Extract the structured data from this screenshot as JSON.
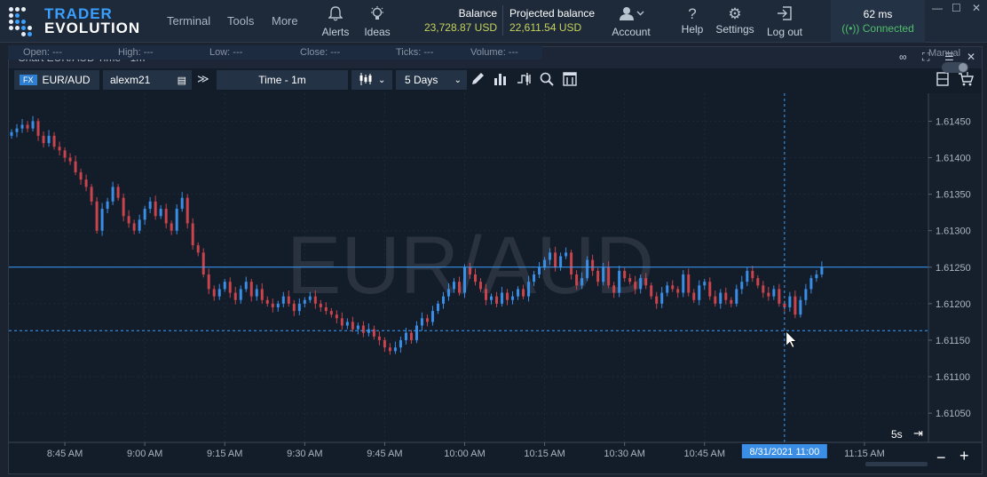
{
  "app": {
    "logo_line1": "TRADER",
    "logo_line2": "EVOLUTION"
  },
  "nav": {
    "terminal": "Terminal",
    "tools": "Tools",
    "more": "More",
    "alerts": "Alerts",
    "ideas": "Ideas",
    "account": "Account",
    "help": "Help",
    "settings": "Settings",
    "logout": "Log out"
  },
  "balance": {
    "balance_label": "Balance",
    "balance_value": "23,728.87 USD",
    "projected_label": "Projected balance",
    "projected_value": "22,611.54 USD"
  },
  "connection": {
    "latency": "62 ms",
    "status": "Connected",
    "status_color": "#4fbf6a"
  },
  "chart_panel": {
    "title": "Chart EUR/AUD Time - 1m",
    "symbol_badge": "FX",
    "symbol": "EUR/AUD",
    "account": "alexm21",
    "timeframe": "Time - 1m",
    "period": "5 Days",
    "manual_label": "Manual",
    "watermark": "EUR/AUD",
    "ohlc": {
      "open": "Open:  ---",
      "high": "High:  ---",
      "low": "Low:  ---",
      "close": "Close:  ---",
      "ticks": "Ticks:  ---",
      "volume": "Volume:  ---"
    },
    "timer_label": "5s",
    "cursor_time": "8/31/2021 11:00",
    "current_price": "1.61250",
    "cursor_price": "1.61163"
  },
  "chart_data": {
    "type": "candlestick",
    "symbol": "EUR/AUD",
    "interval": "1m",
    "y_ticks": [
      "1.61450",
      "1.61400",
      "1.61350",
      "1.61300",
      "1.61250",
      "1.61200",
      "1.61150",
      "1.61100",
      "1.61050"
    ],
    "ylim": [
      1.6101,
      1.6147
    ],
    "x_ticks": [
      "8:45 AM",
      "9:00 AM",
      "9:15 AM",
      "9:30 AM",
      "9:45 AM",
      "10:00 AM",
      "10:15 AM",
      "10:30 AM",
      "10:45 AM",
      "11:15 AM"
    ],
    "x_tick_minutes": [
      525,
      540,
      555,
      570,
      585,
      600,
      615,
      630,
      645,
      675
    ],
    "xlim_minutes": [
      514.5,
      687
    ],
    "last_price": 1.6125,
    "crosshair_price": 1.61163,
    "crosshair_minute": 660,
    "up_color": "#3a8ee6",
    "down_color": "#c9444c",
    "close_series": [
      1.61435,
      1.6144,
      1.61445,
      1.6144,
      1.6145,
      1.6143,
      1.6142,
      1.6143,
      1.61415,
      1.6141,
      1.614,
      1.61395,
      1.6138,
      1.6137,
      1.6136,
      1.6134,
      1.613,
      1.6133,
      1.6134,
      1.6136,
      1.61345,
      1.6132,
      1.6131,
      1.613,
      1.61315,
      1.6133,
      1.6134,
      1.6132,
      1.6133,
      1.6131,
      1.613,
      1.6133,
      1.61345,
      1.6131,
      1.6128,
      1.6127,
      1.6124,
      1.6122,
      1.6121,
      1.6122,
      1.6123,
      1.61215,
      1.61205,
      1.6122,
      1.6123,
      1.6121,
      1.6122,
      1.61205,
      1.612,
      1.61195,
      1.612,
      1.6121,
      1.612,
      1.6119,
      1.612,
      1.61205,
      1.6121,
      1.612,
      1.61195,
      1.6119,
      1.61185,
      1.6118,
      1.6117,
      1.61175,
      1.61165,
      1.6117,
      1.6116,
      1.61165,
      1.61155,
      1.6115,
      1.6114,
      1.61135,
      1.6114,
      1.6115,
      1.6116,
      1.6115,
      1.6117,
      1.6118,
      1.61175,
      1.6119,
      1.612,
      1.6121,
      1.6122,
      1.6123,
      1.61215,
      1.6125,
      1.6124,
      1.6123,
      1.6122,
      1.61205,
      1.6121,
      1.612,
      1.61215,
      1.61205,
      1.6121,
      1.6122,
      1.6121,
      1.6123,
      1.6124,
      1.6125,
      1.6126,
      1.6127,
      1.6125,
      1.61265,
      1.6127,
      1.6124,
      1.61225,
      1.61235,
      1.6126,
      1.61245,
      1.6123,
      1.6125,
      1.61225,
      1.61215,
      1.61245,
      1.61235,
      1.6123,
      1.6122,
      1.61235,
      1.61225,
      1.6121,
      1.612,
      1.61215,
      1.61225,
      1.6122,
      1.61215,
      1.6124,
      1.61215,
      1.61205,
      1.61225,
      1.6123,
      1.6121,
      1.612,
      1.61215,
      1.61205,
      1.612,
      1.6122,
      1.6123,
      1.61245,
      1.61235,
      1.61225,
      1.61215,
      1.6121,
      1.6122,
      1.612,
      1.61195,
      1.6121,
      1.61185,
      1.61205,
      1.6122,
      1.61235,
      1.6124,
      1.6125
    ]
  }
}
